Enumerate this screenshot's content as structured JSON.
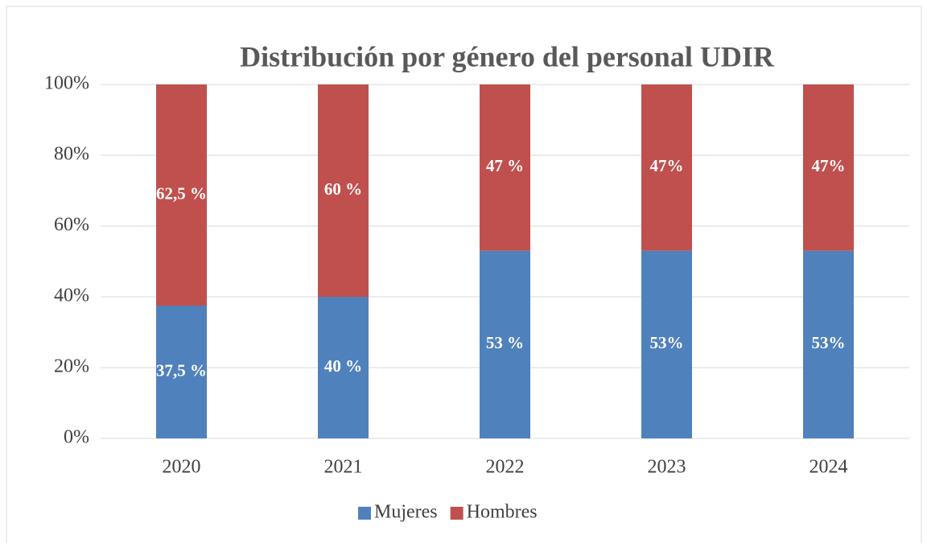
{
  "chart_data": {
    "type": "stacked_bar",
    "title": "Distribución por género del personal UDIR",
    "categories": [
      "2020",
      "2021",
      "2022",
      "2023",
      "2024"
    ],
    "series": [
      {
        "name": "Mujeres",
        "color": "#4f81bd",
        "values": [
          37.5,
          40,
          53,
          53,
          53
        ],
        "value_labels": [
          "37,5 %",
          "40 %",
          "53 %",
          "53%",
          "53%"
        ]
      },
      {
        "name": "Hombres",
        "color": "#c0504d",
        "values": [
          62.5,
          60,
          47,
          47,
          47
        ],
        "value_labels": [
          "62,5 %",
          "60 %",
          "47 %",
          "47%",
          "47%"
        ]
      }
    ],
    "ylim": [
      0,
      100
    ],
    "yticks": [
      {
        "value": 0,
        "label": "0%"
      },
      {
        "value": 20,
        "label": "20%"
      },
      {
        "value": 40,
        "label": "40%"
      },
      {
        "value": 60,
        "label": "60%"
      },
      {
        "value": 80,
        "label": "80%"
      },
      {
        "value": 100,
        "label": "100%"
      }
    ],
    "grid": true,
    "legend": "bottom"
  }
}
